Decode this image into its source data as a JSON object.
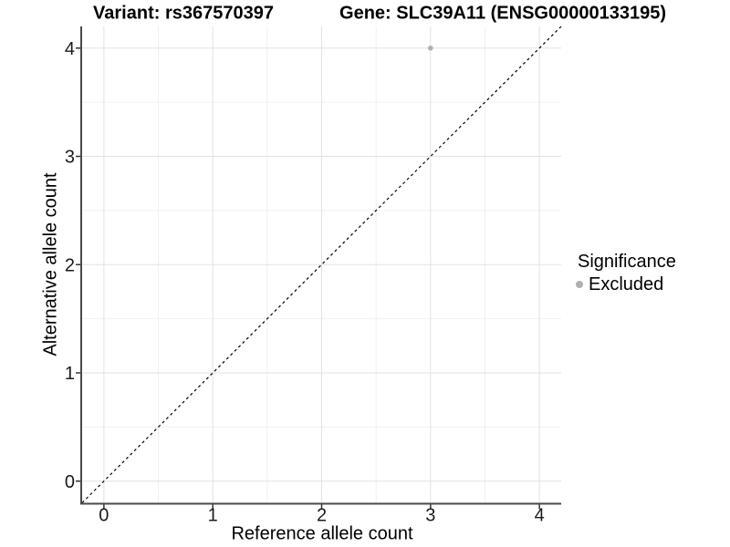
{
  "chart_data": {
    "type": "scatter",
    "title_left": "Variant: rs367570397",
    "title_right": "Gene: SLC39A11 (ENSG00000133195)",
    "xlabel": "Reference allele count",
    "ylabel": "Alternative allele count",
    "xlim": [
      -0.2,
      4.2
    ],
    "ylim": [
      -0.2,
      4.2
    ],
    "xticks": [
      0,
      1,
      2,
      3,
      4
    ],
    "yticks": [
      0,
      1,
      2,
      3,
      4
    ],
    "xminor": [
      0.5,
      1.5,
      2.5,
      3.5
    ],
    "yminor": [
      0.5,
      1.5,
      2.5,
      3.5
    ],
    "grid": "major+minor",
    "identity_line": {
      "style": "dashed",
      "from": [
        -0.2,
        -0.2
      ],
      "to": [
        4.2,
        4.2
      ]
    },
    "series": [
      {
        "name": "Excluded",
        "color": "#b0b0b0",
        "points": [
          {
            "x": 3,
            "y": 4
          }
        ]
      }
    ],
    "legend": {
      "title": "Significance",
      "position": "right",
      "items": [
        {
          "label": "Excluded",
          "color": "#b0b0b0",
          "marker": "circle-icon"
        }
      ]
    }
  },
  "colors": {
    "background": "#ffffff",
    "grid_major": "#e2e2e2",
    "grid_minor": "#f0f0f0",
    "axis_line": "#4a4a4a",
    "tick_mark": "#333333",
    "tick_text": "#1a1a1a",
    "dashed_line": "#000000"
  }
}
